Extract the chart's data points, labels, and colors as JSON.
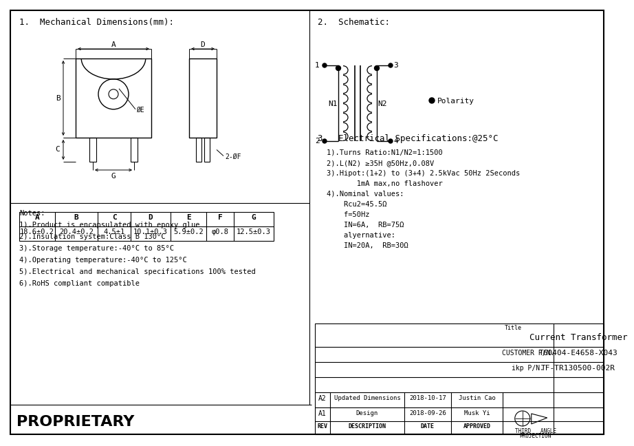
{
  "bg_color": "#ffffff",
  "section1_title": "1.  Mechanical Dimensions(mm):",
  "section2_title": "2.  Schematic:",
  "section3_title": "3.  Electrical Specifications:@25°C",
  "table_headers": [
    "A",
    "B",
    "C",
    "D",
    "E",
    "F",
    "G"
  ],
  "table_values": [
    "18.6±0.2",
    "20.4±0.2",
    "4.5±1",
    "10.1±0.3",
    "5.9±0.2",
    "φ0.8",
    "12.5±0.3"
  ],
  "elec_specs": [
    "1).Turns Ratio:N1/N2=1:1500",
    "2).L(N2) ≥35H @50Hz,0.08V",
    "3).Hipot:(1+2) to (3+4) 2.5kVac 50Hz 2Seconds",
    "       1mA max,no flashover",
    "4).Nominal values:",
    "    Rcu2=45.5Ω",
    "    f=50Hz",
    "    IN=6A,  RB=75Ω",
    "    alyernative:",
    "    IN=20A,  RB=30Ω"
  ],
  "notes": [
    "Notes:",
    "1).Product is encapsulated with epoxy glue",
    "2).Insulation system:Class B 130°C",
    "3).Storage temperature:-40°C to 85°C",
    "4).Operating temperature:-40°C to 125°C",
    "5).Electrical and mechanical specifications 100% tested",
    "6).RoHS compliant compatible"
  ],
  "title_block_title": "Current Transformer",
  "customer_pn_label": "CUSTOMER P/N.",
  "customer_pn": "T60404-E4658-X043",
  "ikp_pn_label": "ikp P/N.",
  "ikp_pn": "TF-TR130500-002R",
  "rev_rows": [
    {
      "rev": "A2",
      "desc": "Updated Dimensions",
      "date": "2018-10-17",
      "approved": "Justin Cao"
    },
    {
      "rev": "A1",
      "desc": "Design",
      "date": "2018-09-26",
      "approved": "Musk Yi"
    },
    {
      "rev": "REV",
      "desc": "DESCRIPTION",
      "date": "DATE",
      "approved": "APPROVED"
    }
  ],
  "proprietary": "PROPRIETARY"
}
